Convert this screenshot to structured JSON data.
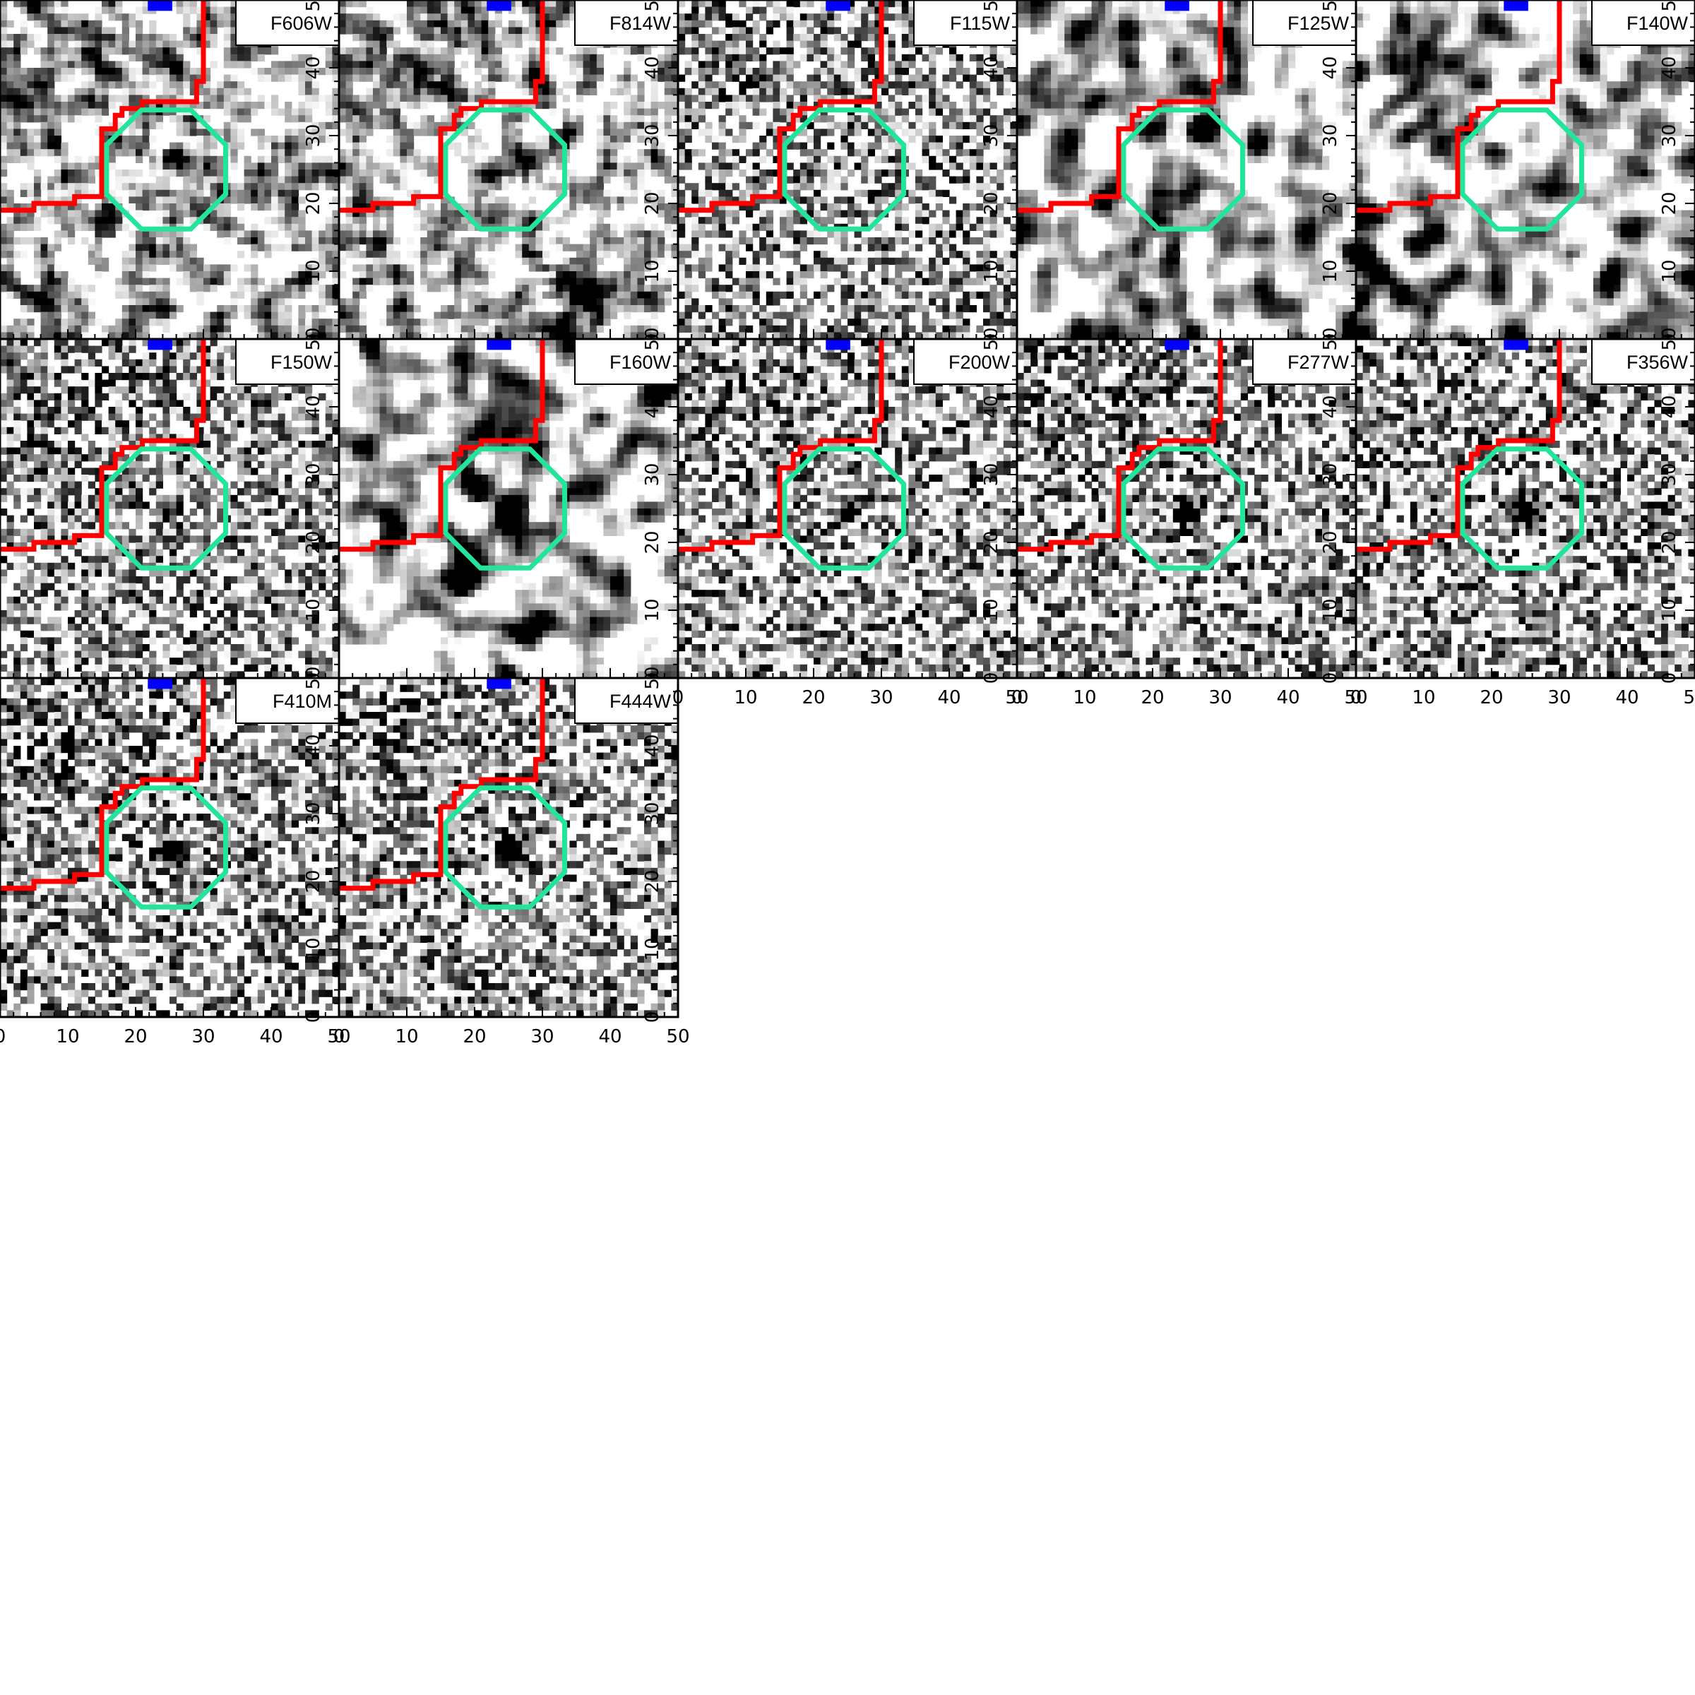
{
  "figure": {
    "grid": {
      "columns": 5,
      "rows": 3
    },
    "panels": [
      {
        "band": "F606W",
        "seed": 11,
        "smooth": 1
      },
      {
        "band": "F814W",
        "seed": 23,
        "smooth": 1
      },
      {
        "band": "F115W",
        "seed": 37,
        "smooth": 0
      },
      {
        "band": "F125W",
        "seed": 41,
        "smooth": 2
      },
      {
        "band": "F140W",
        "seed": 53,
        "smooth": 2
      },
      {
        "band": "F150W",
        "seed": 67,
        "smooth": 0,
        "source": 0.55
      },
      {
        "band": "F160W",
        "seed": 71,
        "smooth": 2,
        "source": 0.8
      },
      {
        "band": "F200W",
        "seed": 83,
        "smooth": 0,
        "source": 0.55
      },
      {
        "band": "F277W",
        "seed": 97,
        "smooth": 0,
        "source": 0.85
      },
      {
        "band": "F356W",
        "seed": 101,
        "smooth": 0,
        "source": 0.9
      },
      {
        "band": "F410M",
        "seed": 113,
        "smooth": 0,
        "source": 1.0
      },
      {
        "band": "F444W",
        "seed": 127,
        "smooth": 0,
        "source": 1.0
      }
    ],
    "axes": {
      "x_ticks": [
        "0",
        "10",
        "20",
        "30",
        "40",
        "50"
      ],
      "y_ticks": [
        "0",
        "10",
        "20",
        "30",
        "40",
        "50"
      ],
      "range": [
        0,
        50
      ]
    },
    "colors": {
      "segmentation": "#ff0000",
      "aperture": "#22e59a",
      "neighbor": "#0000ff",
      "frame": "#000000"
    }
  }
}
